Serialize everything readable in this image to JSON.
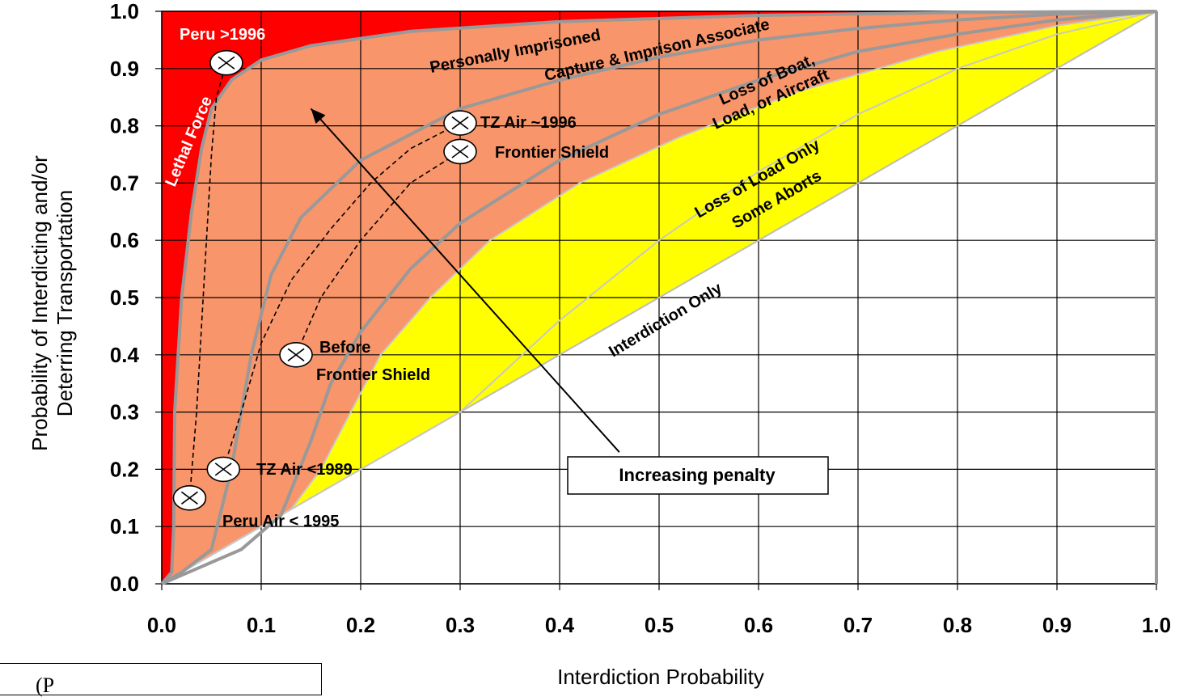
{
  "chart_data": {
    "type": "line",
    "xlabel": "Interdiction Probability",
    "ylabel": [
      "Probability of Interdicting and/or",
      "Deterring Transportation"
    ],
    "xlim": [
      0,
      1
    ],
    "ylim": [
      0,
      1
    ],
    "x_ticks": [
      "0.0",
      "0.1",
      "0.2",
      "0.3",
      "0.4",
      "0.5",
      "0.6",
      "0.7",
      "0.8",
      "0.9",
      "1.0"
    ],
    "y_ticks": [
      "0.0",
      "0.1",
      "0.2",
      "0.3",
      "0.4",
      "0.5",
      "0.6",
      "0.7",
      "0.8",
      "0.9",
      "1.0"
    ],
    "grid": true,
    "regions": [
      {
        "label": "Lethal Force",
        "color": "#ff0000"
      },
      {
        "label": "Personally Imprisoned",
        "color": "#f9956a"
      },
      {
        "label": "Capture & Imprison Associate",
        "color": "#f9956a"
      },
      {
        "label": "Loss of Boat, Load, or Aircraft",
        "color": "#ffff00"
      },
      {
        "label": "Loss of Load Only Some Aborts",
        "color": "#ffff00"
      },
      {
        "label": "Interdiction Only",
        "color": "#ffffff"
      }
    ],
    "curves": {
      "lethal_force": [
        [
          0,
          0
        ],
        [
          0.01,
          0.02
        ],
        [
          0.012,
          0.1
        ],
        [
          0.013,
          0.3
        ],
        [
          0.02,
          0.5
        ],
        [
          0.03,
          0.65
        ],
        [
          0.04,
          0.76
        ],
        [
          0.05,
          0.83
        ],
        [
          0.07,
          0.88
        ],
        [
          0.1,
          0.915
        ],
        [
          0.15,
          0.94
        ],
        [
          0.25,
          0.965
        ],
        [
          0.4,
          0.982
        ],
        [
          0.6,
          0.993
        ],
        [
          0.8,
          0.998
        ],
        [
          1,
          1
        ]
      ],
      "personally_imprisoned": [
        [
          0,
          0
        ],
        [
          0.02,
          0.02
        ],
        [
          0.05,
          0.06
        ],
        [
          0.07,
          0.2
        ],
        [
          0.09,
          0.4
        ],
        [
          0.11,
          0.54
        ],
        [
          0.14,
          0.64
        ],
        [
          0.2,
          0.74
        ],
        [
          0.3,
          0.83
        ],
        [
          0.4,
          0.88
        ],
        [
          0.5,
          0.92
        ],
        [
          0.6,
          0.95
        ],
        [
          0.7,
          0.97
        ],
        [
          0.8,
          0.985
        ],
        [
          0.9,
          0.995
        ],
        [
          1,
          1
        ]
      ],
      "capture_associate": [
        [
          0,
          0
        ],
        [
          0.04,
          0.03
        ],
        [
          0.08,
          0.06
        ],
        [
          0.12,
          0.12
        ],
        [
          0.15,
          0.25
        ],
        [
          0.17,
          0.35
        ],
        [
          0.2,
          0.44
        ],
        [
          0.25,
          0.55
        ],
        [
          0.3,
          0.63
        ],
        [
          0.4,
          0.74
        ],
        [
          0.5,
          0.82
        ],
        [
          0.6,
          0.88
        ],
        [
          0.7,
          0.93
        ],
        [
          0.8,
          0.96
        ],
        [
          0.9,
          0.985
        ],
        [
          1,
          1
        ]
      ],
      "loss_of_boat": [
        [
          0,
          0
        ],
        [
          0.1,
          0.1
        ],
        [
          0.2,
          0.2
        ],
        [
          0.3,
          0.3
        ],
        [
          0.4,
          0.46
        ],
        [
          0.5,
          0.6
        ],
        [
          0.6,
          0.72
        ],
        [
          0.7,
          0.82
        ],
        [
          0.8,
          0.9
        ],
        [
          0.9,
          0.96
        ],
        [
          1,
          1
        ]
      ],
      "loss_of_load": [
        [
          0,
          0
        ],
        [
          0.13,
          0.13
        ],
        [
          0.16,
          0.2
        ],
        [
          0.19,
          0.3
        ],
        [
          0.22,
          0.4
        ],
        [
          0.27,
          0.5
        ],
        [
          0.33,
          0.6
        ],
        [
          0.42,
          0.7
        ],
        [
          0.52,
          0.78
        ],
        [
          0.64,
          0.86
        ],
        [
          0.78,
          0.93
        ],
        [
          0.9,
          0.975
        ],
        [
          1,
          1
        ]
      ],
      "interdiction_only": [
        [
          0,
          0
        ],
        [
          0.1,
          0.1
        ],
        [
          0.2,
          0.2
        ],
        [
          0.3,
          0.3
        ],
        [
          0.4,
          0.4
        ],
        [
          0.5,
          0.5
        ],
        [
          0.6,
          0.6
        ],
        [
          0.7,
          0.7
        ],
        [
          0.8,
          0.8
        ],
        [
          0.9,
          0.9
        ],
        [
          1,
          1
        ]
      ]
    },
    "trajectories": [
      [
        [
          0.028,
          0.15
        ],
        [
          0.035,
          0.3
        ],
        [
          0.04,
          0.45
        ],
        [
          0.045,
          0.6
        ],
        [
          0.05,
          0.75
        ],
        [
          0.055,
          0.85
        ],
        [
          0.065,
          0.91
        ]
      ],
      [
        [
          0.062,
          0.2
        ],
        [
          0.08,
          0.3
        ],
        [
          0.1,
          0.42
        ],
        [
          0.13,
          0.53
        ],
        [
          0.17,
          0.62
        ],
        [
          0.21,
          0.7
        ],
        [
          0.25,
          0.76
        ],
        [
          0.3,
          0.805
        ]
      ],
      [
        [
          0.135,
          0.4
        ],
        [
          0.16,
          0.5
        ],
        [
          0.2,
          0.6
        ],
        [
          0.25,
          0.7
        ],
        [
          0.3,
          0.755
        ]
      ]
    ],
    "points": [
      {
        "label": "Peru Air < 1995",
        "x": 0.028,
        "y": 0.15
      },
      {
        "label": "TZ Air <1989",
        "x": 0.062,
        "y": 0.2
      },
      {
        "label": "Before Frontier Shield",
        "x": 0.135,
        "y": 0.4
      },
      {
        "label": "Frontier Shield",
        "x": 0.3,
        "y": 0.755
      },
      {
        "label": "TZ Air ~1996",
        "x": 0.3,
        "y": 0.805
      },
      {
        "label": "Peru >1996",
        "x": 0.065,
        "y": 0.91
      }
    ],
    "annotations": [
      {
        "text": "Increasing penalty",
        "arrow_from": [
          0.46,
          0.23
        ],
        "arrow_to": [
          0.15,
          0.83
        ]
      }
    ]
  },
  "labels": {
    "peru_1996": "Peru >1996",
    "lethal_force": "Lethal Force",
    "personally_imprisoned": "Personally Imprisoned",
    "capture_associate": "Capture & Imprison Associate",
    "loss_boat_1": "Loss of Boat,",
    "loss_boat_2": "Load, or Aircraft",
    "loss_load_1": "Loss of Load Only",
    "loss_load_2": "Some Aborts",
    "interdiction_only": "Interdiction Only",
    "tz_air_1996": "TZ Air ~1996",
    "frontier_shield": "Frontier Shield",
    "before_fs_1": "Before",
    "before_fs_2": "Frontier Shield",
    "tz_air_1989": "TZ Air <1989",
    "peru_air_1995": "Peru Air < 1995",
    "increasing_penalty": "Increasing penalty"
  },
  "formula": {
    "text": "(P"
  },
  "colors": {
    "lethal": "#ff0000",
    "salmon": "#f9956a",
    "yellow": "#ffff00",
    "curve": "#999999",
    "grid": "#000000"
  }
}
